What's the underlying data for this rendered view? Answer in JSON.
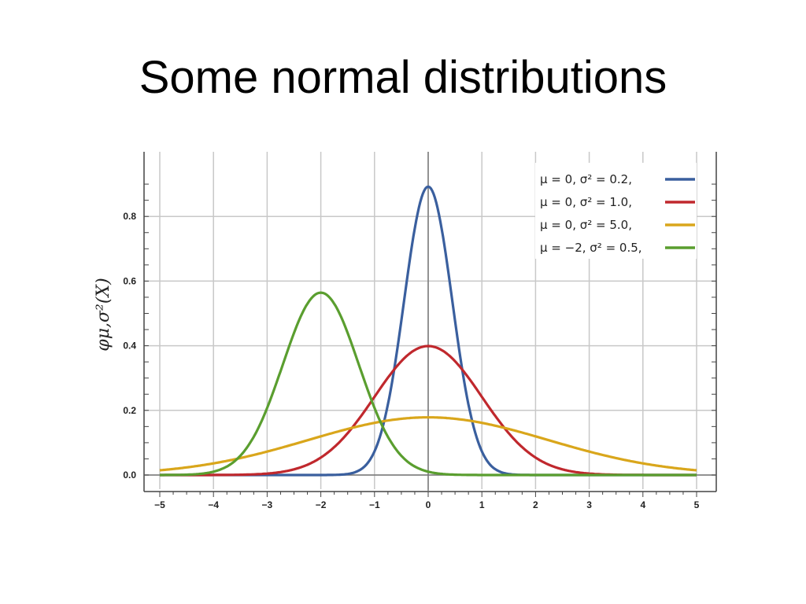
{
  "slide": {
    "title": "Some normal distributions"
  },
  "chart_data": {
    "type": "line",
    "ylabel": "φμ,σ²(X)",
    "xlim": [
      -5,
      5
    ],
    "ylim": [
      0,
      1.0
    ],
    "x_ticks": [
      -5,
      -4,
      -3,
      -2,
      -1,
      0,
      1,
      2,
      3,
      4,
      5
    ],
    "x_tick_labels": [
      "−5",
      "−4",
      "−3",
      "−2",
      "−1",
      "0",
      "1",
      "2",
      "3",
      "4",
      "5"
    ],
    "y_ticks": [
      0.0,
      0.2,
      0.4,
      0.6,
      0.8
    ],
    "y_tick_labels": [
      "0.0",
      "0.2",
      "0.4",
      "0.6",
      "0.8"
    ],
    "grid": true,
    "legend_position": "top-right",
    "series": [
      {
        "name": "μ = 0,   σ² = 0.2,",
        "mu": 0,
        "variance": 0.2,
        "color": "#3a5f9e",
        "x": [
          -5,
          -4,
          -3,
          -2,
          -1.5,
          -1,
          -0.5,
          0,
          0.5,
          1,
          1.5,
          2,
          3,
          4,
          5
        ],
        "values": [
          0,
          0,
          0,
          0,
          0.003,
          0.073,
          0.476,
          0.892,
          0.476,
          0.073,
          0.003,
          0,
          0,
          0,
          0
        ]
      },
      {
        "name": "μ = 0,   σ² = 1.0,",
        "mu": 0,
        "variance": 1.0,
        "color": "#c0282d",
        "x": [
          -5,
          -4,
          -3,
          -2,
          -1,
          -0.5,
          0,
          0.5,
          1,
          2,
          3,
          4,
          5
        ],
        "values": [
          0,
          0.0001,
          0.004,
          0.054,
          0.242,
          0.352,
          0.399,
          0.352,
          0.242,
          0.054,
          0.004,
          0.0001,
          0
        ]
      },
      {
        "name": "μ = 0,   σ² = 5.0,",
        "mu": 0,
        "variance": 5.0,
        "color": "#d9a61b",
        "x": [
          -5,
          -4,
          -3,
          -2,
          -1,
          0,
          1,
          2,
          3,
          4,
          5
        ],
        "values": [
          0.015,
          0.036,
          0.073,
          0.12,
          0.161,
          0.178,
          0.161,
          0.12,
          0.073,
          0.036,
          0.015
        ]
      },
      {
        "name": "μ = −2, σ² = 0.5,",
        "mu": -2,
        "variance": 0.5,
        "color": "#5a9e2f",
        "x": [
          -5,
          -4,
          -3,
          -2.5,
          -2,
          -1.5,
          -1,
          0,
          1,
          2,
          3,
          4,
          5
        ],
        "values": [
          0,
          0.01,
          0.208,
          0.439,
          0.564,
          0.439,
          0.208,
          0.01,
          0,
          0,
          0,
          0,
          0
        ]
      }
    ]
  }
}
